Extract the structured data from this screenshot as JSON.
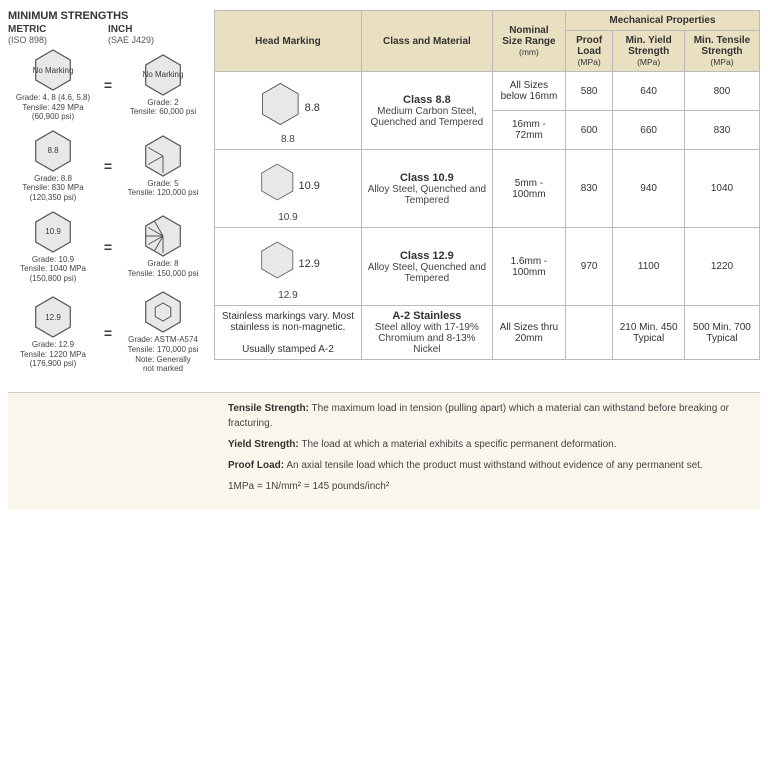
{
  "left": {
    "title": "MINIMUM STRENGTHS",
    "metric_lbl": "METRIC",
    "metric_sub": "(ISO 898)",
    "inch_lbl": "INCH",
    "inch_sub": "(SAE J429)",
    "rows": [
      {
        "m_hex": "No Marking",
        "i_hex": "No Marking",
        "m_txt": "Grade: 4, 8 (4.6, 5.8)\nTensile: 429 MPa\n(60,900 psi)",
        "i_txt": "Grade: 2\nTensile: 60,000 psi",
        "i_lines": 0
      },
      {
        "m_hex": "8.8",
        "i_hex": "",
        "m_txt": "Grade: 8.8\nTensile: 830 MPa\n(120,350 psi)",
        "i_txt": "Grade: 5\nTensile: 120,000 psi",
        "i_lines": 3
      },
      {
        "m_hex": "10.9",
        "i_hex": "",
        "m_txt": "Grade: 10.9\nTensile: 1040 MPa\n(150,800 psi)",
        "i_txt": "Grade: 8\nTensile: 150,000 psi",
        "i_lines": 6
      },
      {
        "m_hex": "12.9",
        "i_hex": "",
        "m_txt": "Grade: 12.9\nTensile: 1220 MPa\n(176,900 psi)",
        "i_txt": "Grade: ASTM-A574\nTensile: 170,000 psi\nNote: Generally\nnot marked",
        "i_lines": 0,
        "i_socket": true
      }
    ]
  },
  "table": {
    "head_marking": "Head Marking",
    "class_material": "Class and Material",
    "nominal_size": "Nominal Size Range",
    "nominal_unit": "(mm)",
    "mech_props": "Mechanical Properties",
    "proof": "Proof Load",
    "proof_unit": "(MPa)",
    "yield": "Min. Yield Strength",
    "yield_unit": "(MPa)",
    "tensile": "Min. Tensile Strength",
    "tensile_unit": "(MPa)",
    "rows": [
      {
        "hex_num": "8.8",
        "hex_cap": "8.8",
        "class": "Class 8.8",
        "material": "Medium Carbon Steel, Quenched and Tempered",
        "sizes": [
          "All Sizes below 16mm",
          "16mm - 72mm"
        ],
        "proof": [
          "580",
          "600"
        ],
        "yield": [
          "640",
          "660"
        ],
        "tens": [
          "800",
          "830"
        ]
      },
      {
        "hex_num": "10.9",
        "hex_cap": "10.9",
        "class": "Class 10.9",
        "material": "Alloy Steel, Quenched and Tempered",
        "sizes": [
          "5mm - 100mm"
        ],
        "proof": [
          "830"
        ],
        "yield": [
          "940"
        ],
        "tens": [
          "1040"
        ]
      },
      {
        "hex_num": "12.9",
        "hex_cap": "12.9",
        "class": "Class 12.9",
        "material": "Alloy Steel, Quenched and Tempered",
        "sizes": [
          "1.6mm - 100mm"
        ],
        "proof": [
          "970"
        ],
        "yield": [
          "1100"
        ],
        "tens": [
          "1220"
        ]
      },
      {
        "mark_text": "Stainless markings vary. Most stainless is non-magnetic.\n\nUsually stamped A-2",
        "class": "A-2 Stainless",
        "material": "Steel alloy with 17-19% Chromium and 8-13% Nickel",
        "sizes": [
          "All Sizes thru 20mm"
        ],
        "proof": [
          ""
        ],
        "yield": [
          "210 Min. 450 Typical"
        ],
        "tens": [
          "500 Min. 700 Typical"
        ]
      }
    ]
  },
  "defs": {
    "tensile_lbl": "Tensile Strength:",
    "tensile_txt": "The maximum load in tension (pulling apart) which a material can withstand before breaking or fracturing.",
    "yield_lbl": "Yield Strength:",
    "yield_txt": "The load at which a material exhibits a specific permanent deformation.",
    "proof_lbl": "Proof Load:",
    "proof_txt": "An axial tensile load which the product must withstand without evidence of any permanent set.",
    "unit": "1MPa = 1N/mm² = 145 pounds/inch²"
  },
  "colors": {
    "header_bg": "#e8e0c0",
    "border": "#bbbbbb",
    "hex_fill": "#e8e8e8",
    "hex_stroke": "#555555"
  }
}
